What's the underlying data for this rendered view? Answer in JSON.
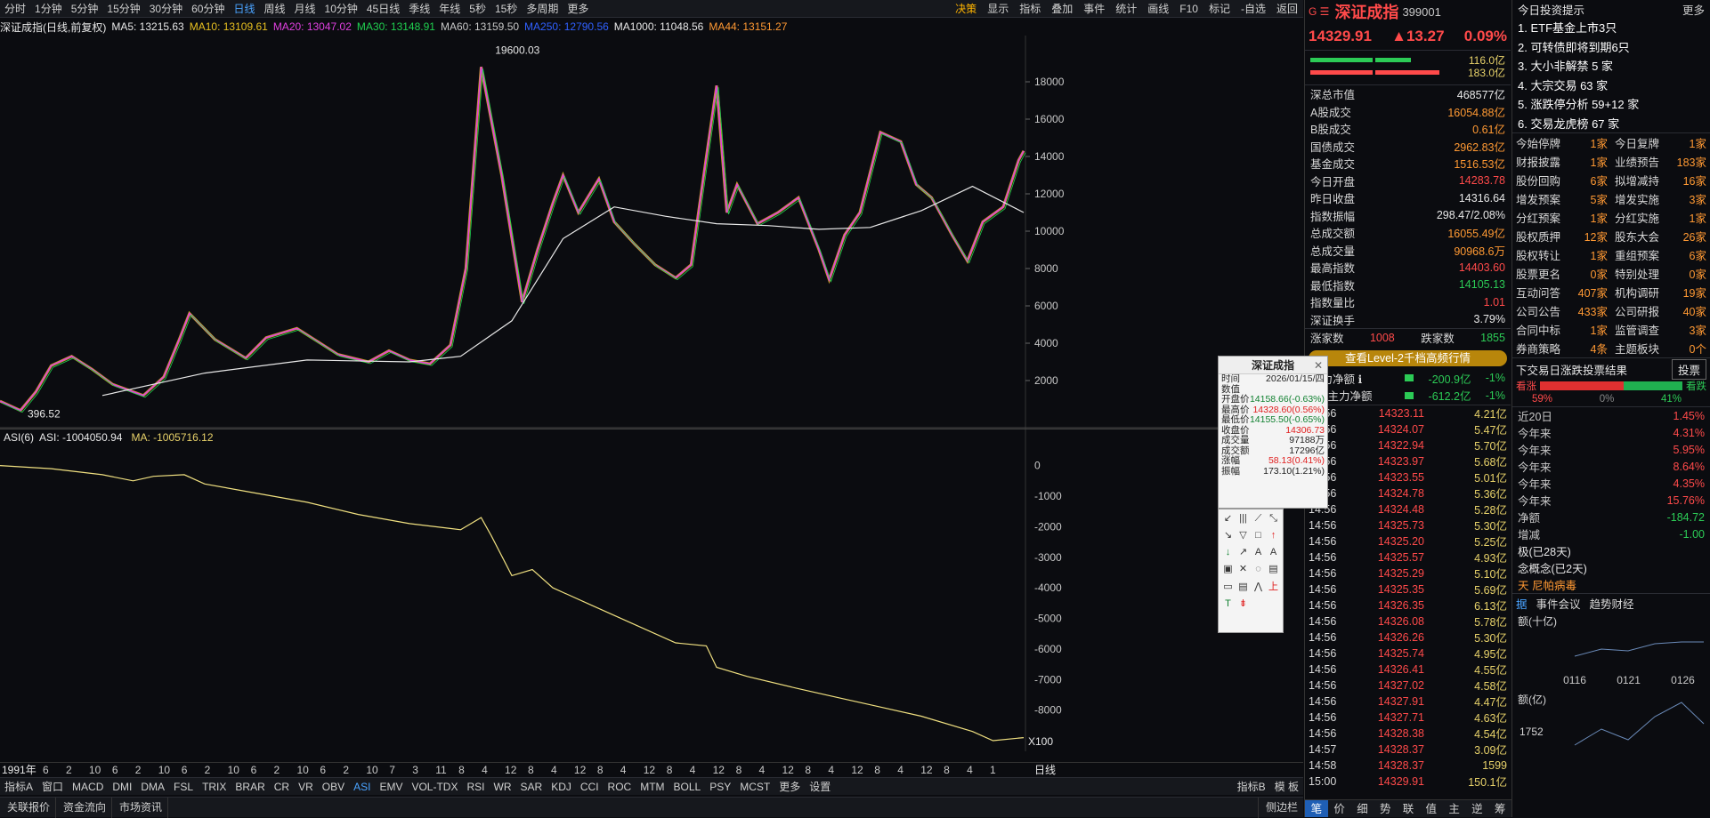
{
  "topbar": {
    "timeframes": [
      "分时",
      "1分钟",
      "5分钟",
      "15分钟",
      "30分钟",
      "60分钟",
      "日线",
      "周线",
      "月线",
      "10分钟",
      "45日线",
      "季线",
      "年线",
      "5秒",
      "15秒",
      "多周期",
      "更多"
    ],
    "active_timeframe_index": 6,
    "tools": [
      "决策",
      "显示",
      "指标",
      "叠加",
      "事件",
      "统计",
      "画线",
      "F10",
      "标记",
      "-自选",
      "返回"
    ]
  },
  "info": {
    "title": "深证成指(日线,前复权)",
    "ma5": "MA5: 13215.63",
    "ma10": "MA10: 13109.61",
    "ma20": "MA20: 13047.02",
    "ma30": "MA30: 13148.91",
    "ma60": "MA60: 13159.50",
    "ma250": "MA250: 12790.56",
    "ma1000": "MA1000: 11048.56",
    "ma44": "MA44: 13151.27"
  },
  "chart_data": [
    {
      "type": "line",
      "title": "深证成指(日线,前复权)",
      "ylim": [
        0,
        20000
      ],
      "yticks": [
        2000,
        4000,
        6000,
        8000,
        10000,
        12000,
        14000,
        16000,
        18000
      ],
      "annotations": [
        {
          "label": "19600.03",
          "value": 19600.03
        },
        {
          "label": "396.52",
          "value": 396.52
        }
      ],
      "series": [
        {
          "name": "MA1000"
        }
      ]
    },
    {
      "type": "line",
      "title": "ASI(6)",
      "ylim": [
        -9000,
        600
      ],
      "yticks": [
        0,
        -1000,
        -2000,
        -3000,
        -4000,
        -5000,
        -6000,
        -7000,
        -8000
      ],
      "scale_label": "X100",
      "series": [
        {
          "name": "ASI",
          "last": -1004050.94
        },
        {
          "name": "MA",
          "last": -1005716.12
        }
      ]
    }
  ],
  "asi": {
    "name": "ASI(6)",
    "asi": "ASI: -1004050.94",
    "ma": "MA: -1005716.12",
    "scale": "X100"
  },
  "xaxis": {
    "start": "1991年",
    "labels": [
      "6",
      "2",
      "10",
      "6",
      "2",
      "10",
      "6",
      "2",
      "10",
      "6",
      "2",
      "10",
      "6",
      "2",
      "10",
      "7",
      "3",
      "11",
      "8",
      "4",
      "12",
      "8",
      "4",
      "12",
      "8",
      "4",
      "12",
      "8",
      "4",
      "12",
      "8",
      "4",
      "12",
      "8",
      "4",
      "12",
      "8",
      "4",
      "12",
      "8",
      "4",
      "1"
    ],
    "last": "日线"
  },
  "indicator_tabs": [
    "指标A",
    "窗口",
    "MACD",
    "DMI",
    "DMA",
    "FSL",
    "TRIX",
    "BRAR",
    "CR",
    "VR",
    "OBV",
    "ASI",
    "EMV",
    "VOL-TDX",
    "RSI",
    "WR",
    "SAR",
    "KDJ",
    "CCI",
    "ROC",
    "MTM",
    "BOLL",
    "PSY",
    "MCST",
    "更多",
    "设置"
  ],
  "indicator_active": "ASI",
  "indicator_right": [
    "指标B",
    "模 板"
  ],
  "bottom": {
    "tabs": [
      "关联报价",
      "资金流向",
      "市场资讯"
    ],
    "right": "侧边栏"
  },
  "quote": {
    "badge": "G ☰",
    "name": "深证成指",
    "code": "399001",
    "price": "14329.91",
    "change": "▲13.27",
    "pct": "0.09%",
    "bar1": "116.0亿",
    "bar2": "183.0亿",
    "stats": [
      {
        "k": "深总市值",
        "v": "468577亿",
        "c": "white"
      },
      {
        "k": "A股成交",
        "v": "16054.88亿",
        "c": "orange"
      },
      {
        "k": "B股成交",
        "v": "0.61亿",
        "c": "orange"
      },
      {
        "k": "国债成交",
        "v": "2962.83亿",
        "c": "orange"
      },
      {
        "k": "基金成交",
        "v": "1516.53亿",
        "c": "orange"
      },
      {
        "k": "今日开盘",
        "v": "14283.78",
        "c": "red"
      },
      {
        "k": "昨日收盘",
        "v": "14316.64",
        "c": "white"
      },
      {
        "k": "指数振幅",
        "v": "298.47/2.08%",
        "c": "white"
      },
      {
        "k": "总成交额",
        "v": "16055.49亿",
        "c": "orange"
      },
      {
        "k": "总成交量",
        "v": "90968.6万",
        "c": "orange"
      },
      {
        "k": "最高指数",
        "v": "14403.60",
        "c": "red"
      },
      {
        "k": "最低指数",
        "v": "14105.13",
        "c": "green"
      },
      {
        "k": "指数量比",
        "v": "1.01",
        "c": "red"
      },
      {
        "k": "深证换手",
        "v": "3.79%",
        "c": "white"
      }
    ],
    "up_label": "涨家数",
    "up": "1008",
    "down_label": "跌家数",
    "down": "1855",
    "level2": "查看Level-2千档高频行情",
    "flow": [
      {
        "k": "主力净额 ℹ",
        "v": "-200.9亿",
        "p": "-1%"
      },
      {
        "k": "5日主力净额",
        "v": "-612.2亿",
        "p": "-1%"
      }
    ],
    "ticks": [
      [
        "14:56",
        "14323.11",
        "4.21亿"
      ],
      [
        "14:56",
        "14324.07",
        "5.47亿"
      ],
      [
        "14:56",
        "14322.94",
        "5.70亿"
      ],
      [
        "14:56",
        "14323.97",
        "5.68亿"
      ],
      [
        "14:56",
        "14323.55",
        "5.01亿"
      ],
      [
        "14:56",
        "14324.78",
        "5.36亿"
      ],
      [
        "14:56",
        "14324.48",
        "5.28亿"
      ],
      [
        "14:56",
        "14325.73",
        "5.30亿"
      ],
      [
        "14:56",
        "14325.20",
        "5.25亿"
      ],
      [
        "14:56",
        "14325.57",
        "4.93亿"
      ],
      [
        "14:56",
        "14325.29",
        "5.10亿"
      ],
      [
        "14:56",
        "14325.35",
        "5.69亿"
      ],
      [
        "14:56",
        "14326.35",
        "6.13亿"
      ],
      [
        "14:56",
        "14326.08",
        "5.78亿"
      ],
      [
        "14:56",
        "14326.26",
        "5.30亿"
      ],
      [
        "14:56",
        "14325.74",
        "4.95亿"
      ],
      [
        "14:56",
        "14326.41",
        "4.55亿"
      ],
      [
        "14:56",
        "14327.02",
        "4.58亿"
      ],
      [
        "14:56",
        "14327.91",
        "4.47亿"
      ],
      [
        "14:56",
        "14327.71",
        "4.63亿"
      ],
      [
        "14:56",
        "14328.38",
        "4.54亿"
      ],
      [
        "14:57",
        "14328.37",
        "3.09亿"
      ],
      [
        "14:58",
        "14328.37",
        "1599"
      ],
      [
        "15:00",
        "14329.91",
        "150.1亿"
      ]
    ],
    "tabs": [
      "笔",
      "价",
      "细",
      "势",
      "联",
      "值",
      "主",
      "逆",
      "筹"
    ]
  },
  "tips": {
    "title": "今日投资提示",
    "more": "更多",
    "items": [
      "1. ETF基金上市3只",
      "2. 可转债即将到期6只",
      "3. 大小非解禁 5 家",
      "4. 大宗交易 63 家",
      "5. 涨跌停分析 59+12 家",
      "6. 交易龙虎榜 67 家"
    ],
    "grid": [
      [
        "今始停牌",
        "1家"
      ],
      [
        "今日复牌",
        "1家"
      ],
      [
        "财报披露",
        "1家"
      ],
      [
        "业绩预告",
        "183家"
      ],
      [
        "股份回购",
        "6家"
      ],
      [
        "拟增减持",
        "16家"
      ],
      [
        "增发预案",
        "5家"
      ],
      [
        "增发实施",
        "3家"
      ],
      [
        "分红预案",
        "1家"
      ],
      [
        "分红实施",
        "1家"
      ],
      [
        "股权质押",
        "12家"
      ],
      [
        "股东大会",
        "26家"
      ],
      [
        "股权转让",
        "1家"
      ],
      [
        "重组预案",
        "6家"
      ],
      [
        "股票更名",
        "0家"
      ],
      [
        "特别处理",
        "0家"
      ],
      [
        "互动问答",
        "407家"
      ],
      [
        "机构调研",
        "19家"
      ],
      [
        "公司公告",
        "433家"
      ],
      [
        "公司研报",
        "40家"
      ],
      [
        "合同中标",
        "1家"
      ],
      [
        "监管调查",
        "3家"
      ],
      [
        "券商策略",
        "4条"
      ],
      [
        "主题板块",
        "0个"
      ]
    ],
    "vote": {
      "title": "下交易日涨跌投票结果",
      "btn": "投票",
      "up": "看涨",
      "down": "看跌",
      "p_up": "59%",
      "p_mid": "0%",
      "p_down": "41%",
      "up_frac": 0.59,
      "down_frac": 0.41
    },
    "years": [
      [
        "近20日",
        "1.45%"
      ],
      [
        "今年来",
        "4.31%"
      ],
      [
        "今年来",
        "5.95%"
      ],
      [
        "今年来",
        "8.64%"
      ],
      [
        "今年来",
        "4.35%"
      ],
      [
        "今年来",
        "15.76%"
      ]
    ],
    "net": {
      "k": "净额",
      "v": "-184.72"
    },
    "chg": {
      "k": "增减",
      "v": "-1.00"
    },
    "concept1": "极(已28天)",
    "concept2": "念概念(已2天)",
    "concept3": "天 尼帕病毒",
    "tabs2": [
      "据",
      "事件会议",
      "趋势财经"
    ],
    "small1": "额(十亿)",
    "dates": [
      "0116",
      "0121",
      "0126"
    ],
    "small2": "额(亿)",
    "small2v": "1752"
  },
  "popup": {
    "title": "深证成指",
    "rows": [
      [
        "时间",
        "2026/01/15/四"
      ],
      [
        "数值",
        ""
      ],
      [
        "开盘价",
        "14158.66(-0.63%)"
      ],
      [
        "最高价",
        "14328.60(0.56%)"
      ],
      [
        "最低价",
        "14155.50(-0.65%)"
      ],
      [
        "收盘价",
        "14306.73"
      ],
      [
        "成交量",
        "97188万"
      ],
      [
        "成交额",
        "17296亿"
      ],
      [
        "涨幅",
        "58.13(0.41%)"
      ],
      [
        "振幅",
        "173.10(1.21%)"
      ]
    ]
  }
}
